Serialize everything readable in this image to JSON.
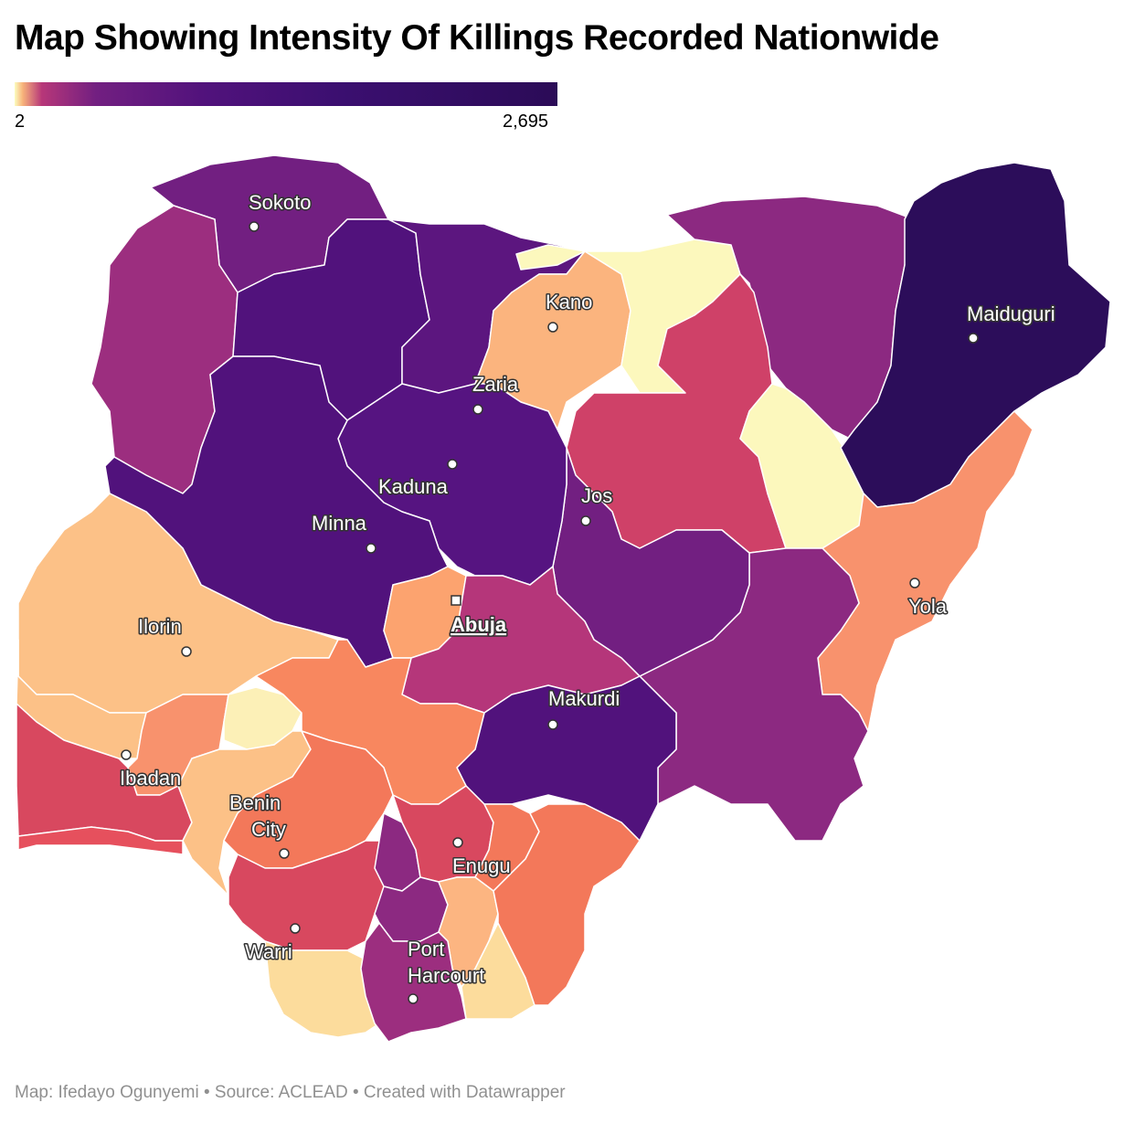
{
  "title": "Map Showing Intensity Of Killings Recorded Nationwide",
  "legend": {
    "min_label": "2",
    "max_label": "2,695",
    "colors": [
      "#fcfdbf",
      "#b73779",
      "#721f81",
      "#51127c",
      "#2b0b57"
    ]
  },
  "cities": {
    "sokoto": "Sokoto",
    "kano": "Kano",
    "maiduguri": "Maiduguri",
    "zaria": "Zaria",
    "kaduna": "Kaduna",
    "jos": "Jos",
    "minna": "Minna",
    "abuja": "Abuja",
    "yola": "Yola",
    "ilorin": "Ilorin",
    "makurdi": "Makurdi",
    "ibadan": "Ibadan",
    "benin_line1": "Benin",
    "benin_line2": "City",
    "enugu": "Enugu",
    "warri": "Warri",
    "ph_line1": "Port",
    "ph_line2": "Harcourt"
  },
  "footer": "Map: Ifedayo Ogunyemi • Source: ACLEAD • Created with Datawrapper"
}
